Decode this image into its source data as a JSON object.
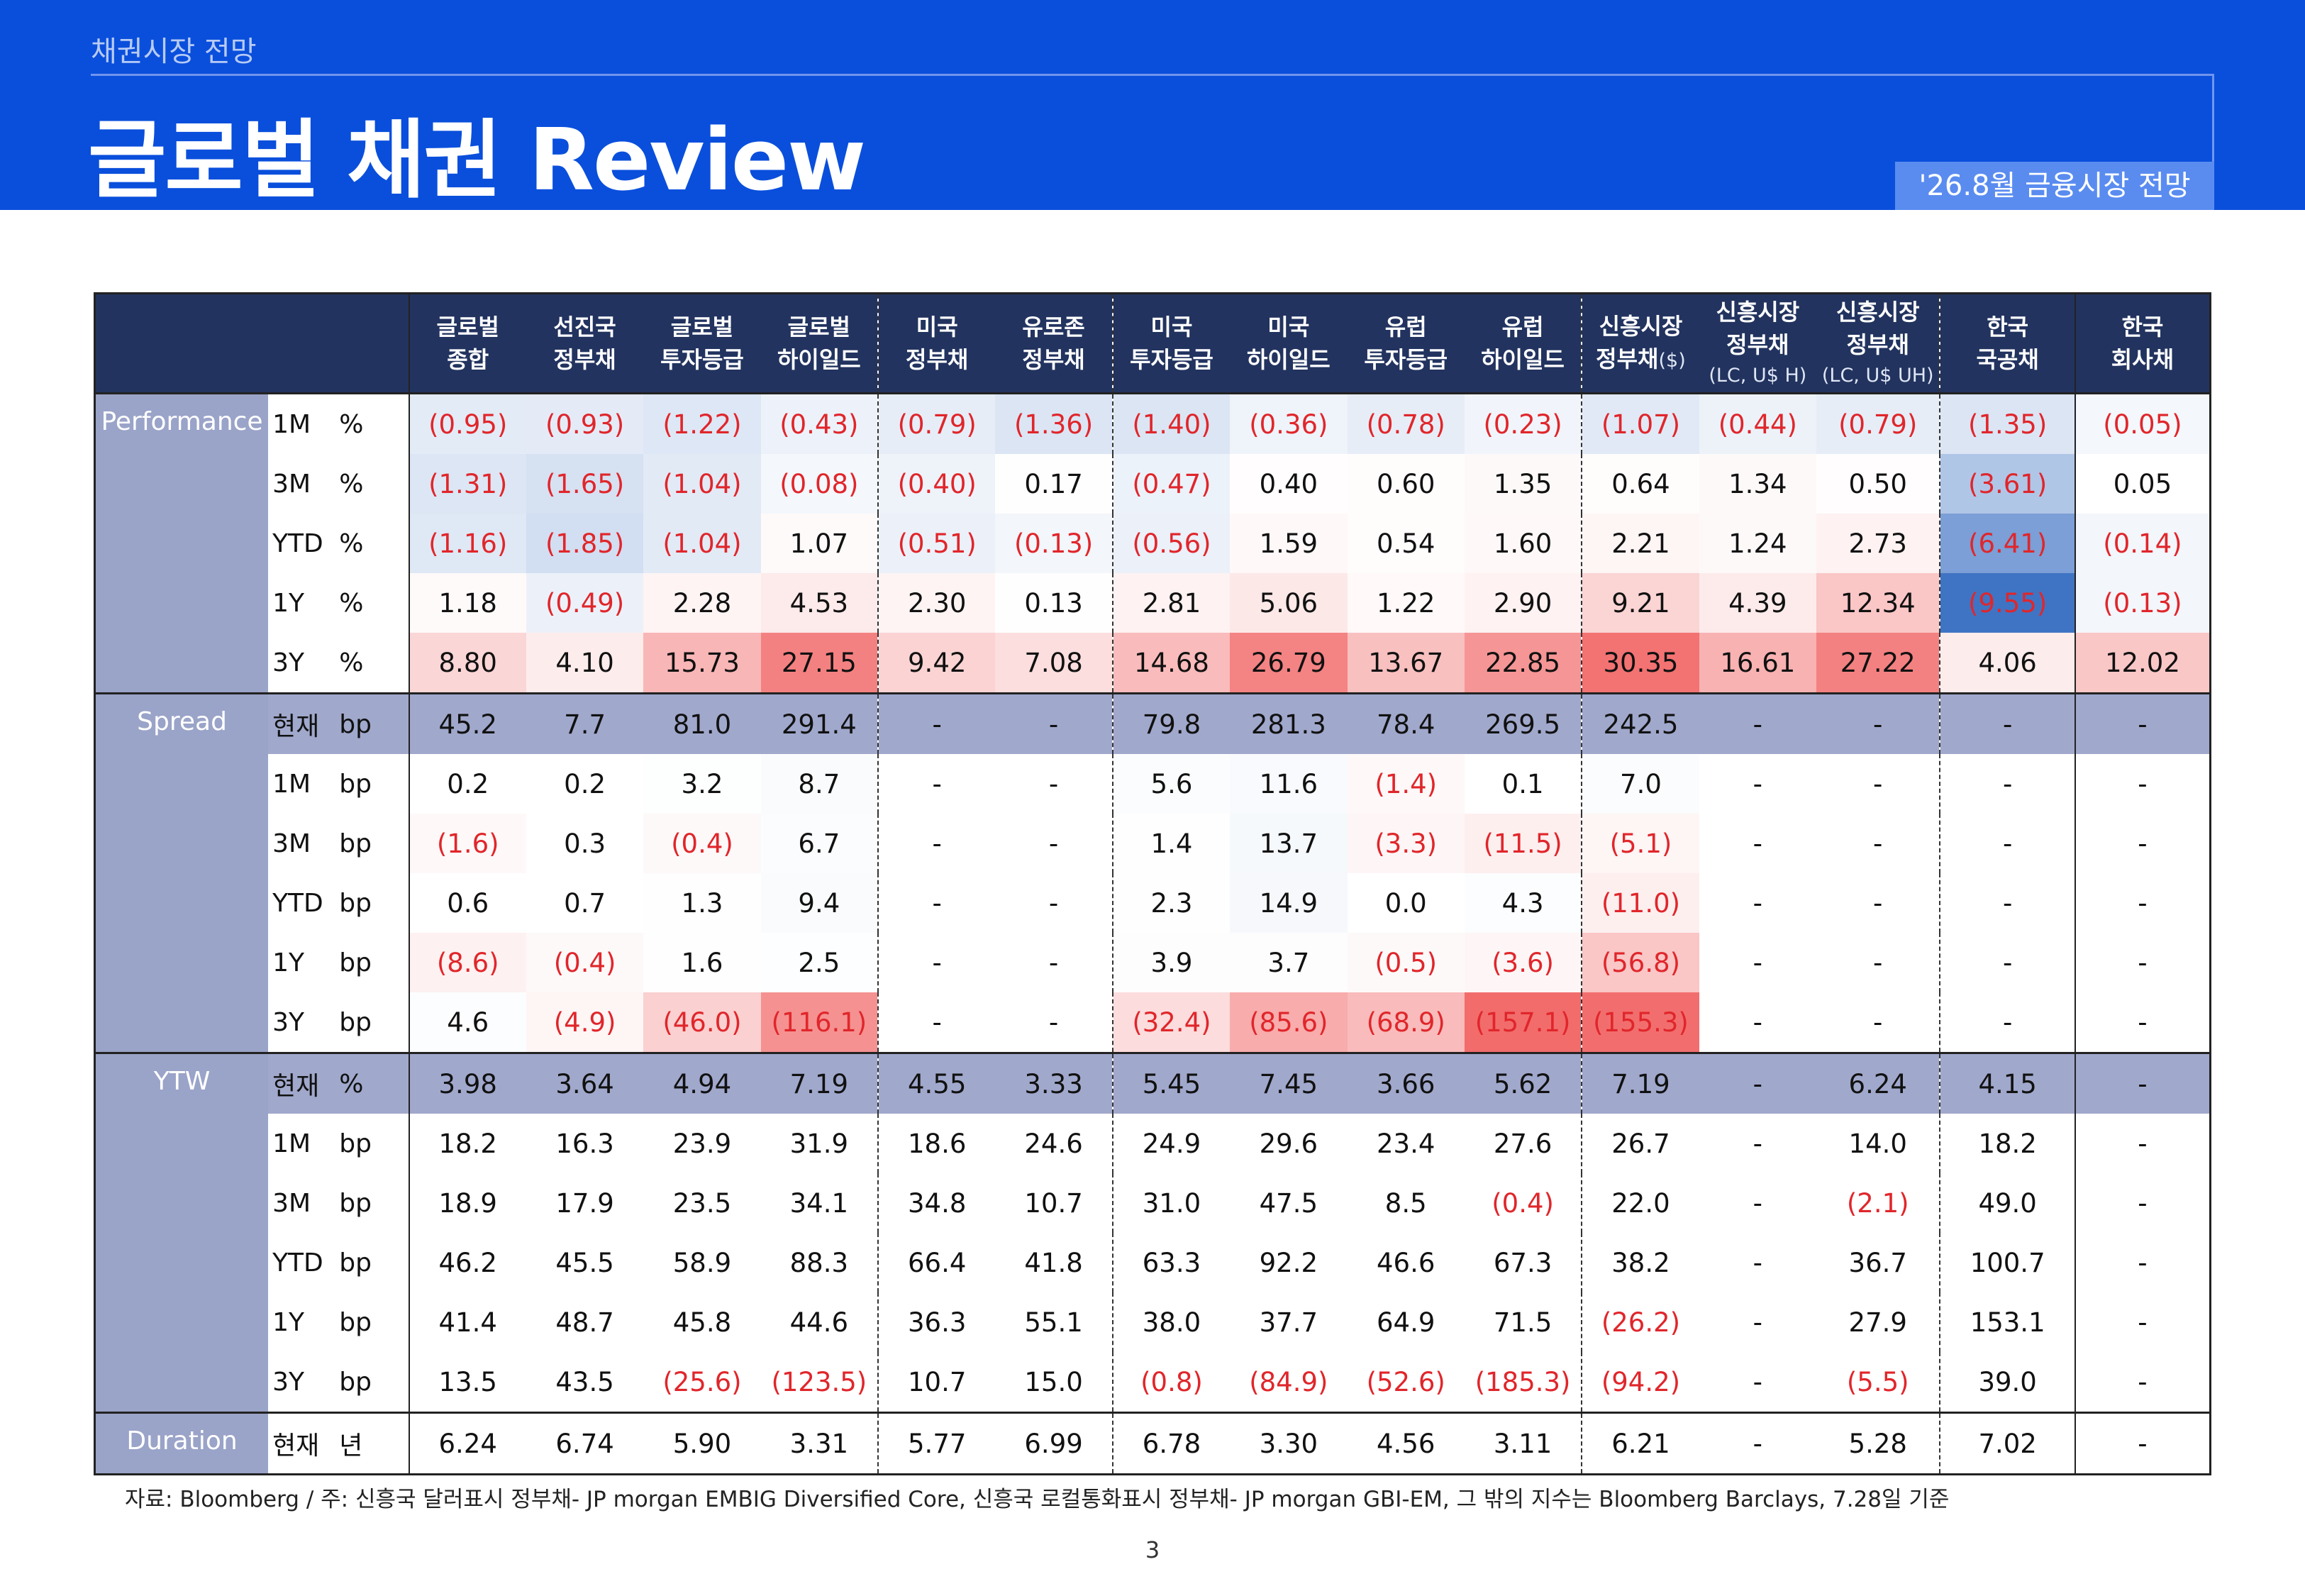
{
  "header": {
    "section": "채권시장 전망",
    "title": "글로벌 채권 Review",
    "badge": "'26.8월 금융시장 전망"
  },
  "columns": [
    {
      "l1": "글로벌",
      "l2": "종합",
      "l3": ""
    },
    {
      "l1": "선진국",
      "l2": "정부채",
      "l3": ""
    },
    {
      "l1": "글로벌",
      "l2": "투자등급",
      "l3": ""
    },
    {
      "l1": "글로벌",
      "l2": "하이일드",
      "l3": ""
    },
    {
      "l1": "미국",
      "l2": "정부채",
      "l3": ""
    },
    {
      "l1": "유로존",
      "l2": "정부채",
      "l3": ""
    },
    {
      "l1": "미국",
      "l2": "투자등급",
      "l3": ""
    },
    {
      "l1": "미국",
      "l2": "하이일드",
      "l3": ""
    },
    {
      "l1": "유럽",
      "l2": "투자등급",
      "l3": ""
    },
    {
      "l1": "유럽",
      "l2": "하이일드",
      "l3": ""
    },
    {
      "l1": "신흥시장",
      "l2": "정부채",
      "l3": "($)"
    },
    {
      "l1": "신흥시장",
      "l2": "정부채",
      "l3": "(LC, U$ H)"
    },
    {
      "l1": "신흥시장",
      "l2": "정부채",
      "l3": "(LC, U$ UH)"
    },
    {
      "l1": "한국",
      "l2": "국공채",
      "l3": ""
    },
    {
      "l1": "한국",
      "l2": "회사채",
      "l3": ""
    }
  ],
  "groups": [
    {
      "name": "Performance",
      "rows": [
        {
          "period": "1M",
          "unit": "%",
          "values": [
            "(0.95)",
            "(0.93)",
            "(1.22)",
            "(0.43)",
            "(0.79)",
            "(1.36)",
            "(1.40)",
            "(0.36)",
            "(0.78)",
            "(0.23)",
            "(1.07)",
            "(0.44)",
            "(0.79)",
            "(1.35)",
            "(0.05)"
          ]
        },
        {
          "period": "3M",
          "unit": "%",
          "values": [
            "(1.31)",
            "(1.65)",
            "(1.04)",
            "(0.08)",
            "(0.40)",
            "0.17",
            "(0.47)",
            "0.40",
            "0.60",
            "1.35",
            "0.64",
            "1.34",
            "0.50",
            "(3.61)",
            "0.05"
          ]
        },
        {
          "period": "YTD",
          "unit": "%",
          "values": [
            "(1.16)",
            "(1.85)",
            "(1.04)",
            "1.07",
            "(0.51)",
            "(0.13)",
            "(0.56)",
            "1.59",
            "0.54",
            "1.60",
            "2.21",
            "1.24",
            "2.73",
            "(6.41)",
            "(0.14)"
          ]
        },
        {
          "period": "1Y",
          "unit": "%",
          "values": [
            "1.18",
            "(0.49)",
            "2.28",
            "4.53",
            "2.30",
            "0.13",
            "2.81",
            "5.06",
            "1.22",
            "2.90",
            "9.21",
            "4.39",
            "12.34",
            "(9.55)",
            "(0.13)"
          ]
        },
        {
          "period": "3Y",
          "unit": "%",
          "values": [
            "8.80",
            "4.10",
            "15.73",
            "27.15",
            "9.42",
            "7.08",
            "14.68",
            "26.79",
            "13.67",
            "22.85",
            "30.35",
            "16.61",
            "27.22",
            "4.06",
            "12.02"
          ]
        }
      ]
    },
    {
      "name": "Spread",
      "rows": [
        {
          "period": "현재",
          "unit": "bp",
          "values": [
            "45.2",
            "7.7",
            "81.0",
            "291.4",
            "-",
            "-",
            "79.8",
            "281.3",
            "78.4",
            "269.5",
            "242.5",
            "-",
            "-",
            "-",
            "-"
          ]
        },
        {
          "period": "1M",
          "unit": "bp",
          "values": [
            "0.2",
            "0.2",
            "3.2",
            "8.7",
            "-",
            "-",
            "5.6",
            "11.6",
            "(1.4)",
            "0.1",
            "7.0",
            "-",
            "-",
            "-",
            "-"
          ]
        },
        {
          "period": "3M",
          "unit": "bp",
          "values": [
            "(1.6)",
            "0.3",
            "(0.4)",
            "6.7",
            "-",
            "-",
            "1.4",
            "13.7",
            "(3.3)",
            "(11.5)",
            "(5.1)",
            "-",
            "-",
            "-",
            "-"
          ]
        },
        {
          "period": "YTD",
          "unit": "bp",
          "values": [
            "0.6",
            "0.7",
            "1.3",
            "9.4",
            "-",
            "-",
            "2.3",
            "14.9",
            "0.0",
            "4.3",
            "(11.0)",
            "-",
            "-",
            "-",
            "-"
          ]
        },
        {
          "period": "1Y",
          "unit": "bp",
          "values": [
            "(8.6)",
            "(0.4)",
            "1.6",
            "2.5",
            "-",
            "-",
            "3.9",
            "3.7",
            "(0.5)",
            "(3.6)",
            "(56.8)",
            "-",
            "-",
            "-",
            "-"
          ]
        },
        {
          "period": "3Y",
          "unit": "bp",
          "values": [
            "4.6",
            "(4.9)",
            "(46.0)",
            "(116.1)",
            "-",
            "-",
            "(32.4)",
            "(85.6)",
            "(68.9)",
            "(157.1)",
            "(155.3)",
            "-",
            "-",
            "-",
            "-"
          ]
        }
      ]
    },
    {
      "name": "YTW",
      "rows": [
        {
          "period": "현재",
          "unit": "%",
          "values": [
            "3.98",
            "3.64",
            "4.94",
            "7.19",
            "4.55",
            "3.33",
            "5.45",
            "7.45",
            "3.66",
            "5.62",
            "7.19",
            "-",
            "6.24",
            "4.15",
            "-"
          ]
        },
        {
          "period": "1M",
          "unit": "bp",
          "values": [
            "18.2",
            "16.3",
            "23.9",
            "31.9",
            "18.6",
            "24.6",
            "24.9",
            "29.6",
            "23.4",
            "27.6",
            "26.7",
            "-",
            "14.0",
            "18.2",
            "-"
          ]
        },
        {
          "period": "3M",
          "unit": "bp",
          "values": [
            "18.9",
            "17.9",
            "23.5",
            "34.1",
            "34.8",
            "10.7",
            "31.0",
            "47.5",
            "8.5",
            "(0.4)",
            "22.0",
            "-",
            "(2.1)",
            "49.0",
            "-"
          ]
        },
        {
          "period": "YTD",
          "unit": "bp",
          "values": [
            "46.2",
            "45.5",
            "58.9",
            "88.3",
            "66.4",
            "41.8",
            "63.3",
            "92.2",
            "46.6",
            "67.3",
            "38.2",
            "-",
            "36.7",
            "100.7",
            "-"
          ]
        },
        {
          "period": "1Y",
          "unit": "bp",
          "values": [
            "41.4",
            "48.7",
            "45.8",
            "44.6",
            "36.3",
            "55.1",
            "38.0",
            "37.7",
            "64.9",
            "71.5",
            "(26.2)",
            "-",
            "27.9",
            "153.1",
            "-"
          ]
        },
        {
          "period": "3Y",
          "unit": "bp",
          "values": [
            "13.5",
            "43.5",
            "(25.6)",
            "(123.5)",
            "10.7",
            "15.0",
            "(0.8)",
            "(84.9)",
            "(52.6)",
            "(185.3)",
            "(94.2)",
            "-",
            "(5.5)",
            "39.0",
            "-"
          ]
        }
      ]
    },
    {
      "name": "Duration",
      "rows": [
        {
          "period": "현재",
          "unit": "년",
          "values": [
            "6.24",
            "6.74",
            "5.90",
            "3.31",
            "5.77",
            "6.99",
            "6.78",
            "3.30",
            "4.56",
            "3.11",
            "6.21",
            "-",
            "5.28",
            "7.02",
            "-"
          ]
        }
      ]
    }
  ],
  "colors": {
    "header_bg": "#0a4fdc",
    "table_header": "#22335f",
    "group_label": "#9aa3c8",
    "negative_text": "#e0262b",
    "heat_positive": "#f26b6b",
    "heat_negative": "#3f74c4"
  },
  "footer": "자료: Bloomberg / 주: 신흥국 달러표시 정부채- JP morgan EMBIG Diversified Core, 신흥국 로컬통화표시 정부채- JP morgan GBI-EM, 그 밖의 지수는 Bloomberg Barclays, 7.28일 기준",
  "page_number": "3"
}
